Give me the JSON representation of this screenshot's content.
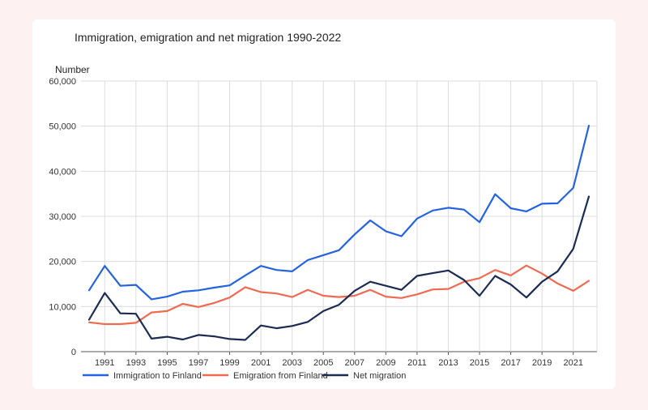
{
  "chart_data": {
    "type": "line",
    "title": "Immigration, emigration and net migration 1990-2022",
    "ylabel": "Number",
    "xlabel": "",
    "ylim": [
      0,
      60000
    ],
    "yticks": [
      0,
      10000,
      20000,
      30000,
      40000,
      50000,
      60000
    ],
    "ytick_labels": [
      "0",
      "10,000",
      "20,000",
      "30,000",
      "40,000",
      "50,000",
      "60,000"
    ],
    "x": [
      1990,
      1991,
      1992,
      1993,
      1994,
      1995,
      1996,
      1997,
      1998,
      1999,
      2000,
      2001,
      2002,
      2003,
      2004,
      2005,
      2006,
      2007,
      2008,
      2009,
      2010,
      2011,
      2012,
      2013,
      2014,
      2015,
      2016,
      2017,
      2018,
      2019,
      2020,
      2021,
      2022
    ],
    "xtick_labels": [
      "1991",
      "1993",
      "1995",
      "1997",
      "1999",
      "2001",
      "2003",
      "2005",
      "2007",
      "2009",
      "2011",
      "2013",
      "2015",
      "2017",
      "2019",
      "2021"
    ],
    "legend_position": "bottom",
    "grid": true,
    "series": [
      {
        "name": "Immigration to Finland",
        "color": "#2463e0",
        "values": [
          13600,
          19000,
          14600,
          14800,
          11600,
          12200,
          13300,
          13600,
          14200,
          14700,
          16900,
          19000,
          18100,
          17800,
          20300,
          21400,
          22500,
          26000,
          29100,
          26700,
          25600,
          29500,
          31300,
          31900,
          31500,
          28700,
          34900,
          31800,
          31100,
          32800,
          32900,
          36300,
          50100
        ]
      },
      {
        "name": "Emigration from Finland",
        "color": "#ef6a52",
        "values": [
          6500,
          6100,
          6100,
          6400,
          8700,
          9000,
          10600,
          9900,
          10800,
          12000,
          14300,
          13200,
          12900,
          12100,
          13700,
          12400,
          12100,
          12400,
          13700,
          12200,
          11900,
          12700,
          13800,
          13900,
          15500,
          16300,
          18100,
          16900,
          19100,
          17300,
          15100,
          13500,
          15700
        ]
      },
      {
        "name": "Net migration",
        "color": "#1b2b52",
        "values": [
          7100,
          13000,
          8500,
          8400,
          2900,
          3300,
          2700,
          3700,
          3400,
          2800,
          2600,
          5800,
          5200,
          5700,
          6600,
          9000,
          10400,
          13500,
          15500,
          14600,
          13700,
          16800,
          17400,
          18000,
          15900,
          12400,
          16800,
          14900,
          12000,
          15500,
          17800,
          22800,
          34400
        ]
      }
    ]
  }
}
